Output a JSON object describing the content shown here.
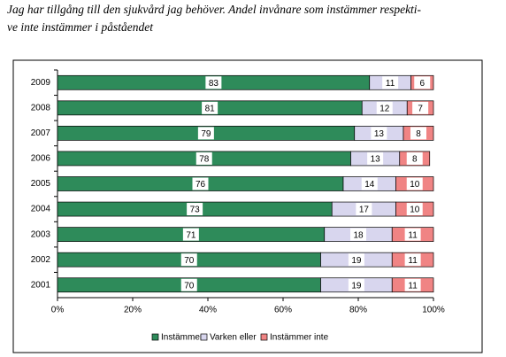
{
  "chart_data": {
    "type": "stacked_barh",
    "title_lines": [
      "Jag har tillgång till den sjukvård jag behöver. Andel invånare som instämmer respekti-",
      "ve inte instämmer i påståendet"
    ],
    "categories": [
      "2009",
      "2008",
      "2007",
      "2006",
      "2005",
      "2004",
      "2003",
      "2002",
      "2001"
    ],
    "series": [
      {
        "name": "Instämmer",
        "color": "#2e8b5a",
        "values": [
          83,
          81,
          79,
          78,
          76,
          73,
          71,
          70,
          70
        ]
      },
      {
        "name": "Varken eller",
        "color": "#d8d6ee",
        "values": [
          11,
          12,
          13,
          13,
          14,
          17,
          18,
          19,
          19
        ]
      },
      {
        "name": "Instämmer inte",
        "color": "#f08484",
        "values": [
          6,
          7,
          8,
          8,
          10,
          10,
          11,
          11,
          11
        ]
      }
    ],
    "xlim": [
      0,
      100
    ],
    "xticks": [
      {
        "value": 0,
        "label": "0%"
      },
      {
        "value": 20,
        "label": "20%"
      },
      {
        "value": 40,
        "label": "40%"
      },
      {
        "value": 60,
        "label": "60%"
      },
      {
        "value": 80,
        "label": "80%"
      },
      {
        "value": 100,
        "label": "100%"
      }
    ],
    "legend": "bottom"
  }
}
